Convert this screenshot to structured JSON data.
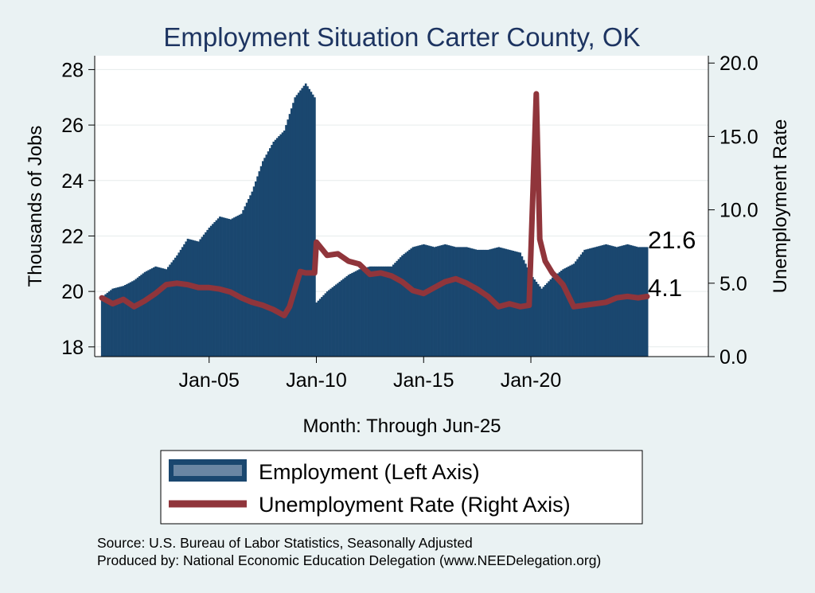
{
  "chart_data": {
    "type": "bar+line",
    "title": "Employment Situation Carter  County, OK",
    "xlabel": "Month: Through Jun-25",
    "ylabel_left": "Thousands of Jobs",
    "ylabel_right": "Unemployment Rate",
    "x_ticks": [
      "Jan-05",
      "Jan-10",
      "Jan-15",
      "Jan-20"
    ],
    "y_left_ticks": [
      "18",
      "20",
      "22",
      "24",
      "26",
      "28"
    ],
    "y_right_ticks": [
      "0.0",
      "5.0",
      "10.0",
      "15.0",
      "20.0"
    ],
    "ylim_left": [
      17.65,
      28.5
    ],
    "ylim_right": [
      0,
      20.5
    ],
    "x_range_months": [
      "2000-01",
      "2025-06"
    ],
    "end_labels": {
      "employment": "21.6",
      "unemployment": "4.1"
    },
    "legend": [
      "Employment (Left Axis)",
      "Unemployment Rate (Right Axis)"
    ],
    "legend_placement": "bottom",
    "grid": true,
    "colors": {
      "employment": "#1a476f",
      "unemployment": "#90353b",
      "background": "#eaf2f3",
      "plot": "#ffffff",
      "title": "#1d3461"
    },
    "series": [
      {
        "name": "Employment (Left Axis)",
        "kind": "bar",
        "axis": "left",
        "points": [
          [
            "2000-01",
            19.8
          ],
          [
            "2000-07",
            20.1
          ],
          [
            "2001-01",
            20.2
          ],
          [
            "2001-07",
            20.4
          ],
          [
            "2002-01",
            20.7
          ],
          [
            "2002-07",
            20.9
          ],
          [
            "2003-01",
            20.8
          ],
          [
            "2003-07",
            21.3
          ],
          [
            "2004-01",
            21.9
          ],
          [
            "2004-07",
            21.8
          ],
          [
            "2005-01",
            22.3
          ],
          [
            "2005-07",
            22.7
          ],
          [
            "2006-01",
            22.6
          ],
          [
            "2006-07",
            22.8
          ],
          [
            "2007-01",
            23.6
          ],
          [
            "2007-07",
            24.7
          ],
          [
            "2008-01",
            25.4
          ],
          [
            "2008-07",
            25.8
          ],
          [
            "2009-01",
            27.0
          ],
          [
            "2009-07",
            27.5
          ],
          [
            "2009-12",
            27.0
          ],
          [
            "2010-01",
            19.6
          ],
          [
            "2010-07",
            20.0
          ],
          [
            "2011-01",
            20.3
          ],
          [
            "2011-07",
            20.6
          ],
          [
            "2012-01",
            20.8
          ],
          [
            "2012-07",
            20.9
          ],
          [
            "2013-01",
            20.9
          ],
          [
            "2013-07",
            20.9
          ],
          [
            "2014-01",
            21.3
          ],
          [
            "2014-07",
            21.6
          ],
          [
            "2015-01",
            21.7
          ],
          [
            "2015-07",
            21.6
          ],
          [
            "2016-01",
            21.7
          ],
          [
            "2016-07",
            21.6
          ],
          [
            "2017-01",
            21.6
          ],
          [
            "2017-07",
            21.5
          ],
          [
            "2018-01",
            21.5
          ],
          [
            "2018-07",
            21.6
          ],
          [
            "2019-01",
            21.5
          ],
          [
            "2019-07",
            21.4
          ],
          [
            "2020-01",
            20.6
          ],
          [
            "2020-07",
            20.1
          ],
          [
            "2021-01",
            20.5
          ],
          [
            "2021-07",
            20.8
          ],
          [
            "2022-01",
            21.0
          ],
          [
            "2022-07",
            21.5
          ],
          [
            "2023-01",
            21.6
          ],
          [
            "2023-07",
            21.7
          ],
          [
            "2024-01",
            21.6
          ],
          [
            "2024-07",
            21.7
          ],
          [
            "2025-01",
            21.6
          ],
          [
            "2025-06",
            21.6
          ]
        ]
      },
      {
        "name": "Unemployment Rate (Right Axis)",
        "kind": "line",
        "axis": "right",
        "points": [
          [
            "2000-01",
            4.0
          ],
          [
            "2000-07",
            3.6
          ],
          [
            "2001-01",
            3.9
          ],
          [
            "2001-07",
            3.4
          ],
          [
            "2002-01",
            3.8
          ],
          [
            "2002-07",
            4.3
          ],
          [
            "2003-01",
            4.9
          ],
          [
            "2003-07",
            5.0
          ],
          [
            "2004-01",
            4.9
          ],
          [
            "2004-07",
            4.7
          ],
          [
            "2005-01",
            4.7
          ],
          [
            "2005-07",
            4.6
          ],
          [
            "2006-01",
            4.4
          ],
          [
            "2006-07",
            4.0
          ],
          [
            "2007-01",
            3.7
          ],
          [
            "2007-07",
            3.5
          ],
          [
            "2008-01",
            3.2
          ],
          [
            "2008-07",
            2.8
          ],
          [
            "2008-10",
            3.4
          ],
          [
            "2009-01",
            4.6
          ],
          [
            "2009-04",
            5.8
          ],
          [
            "2009-07",
            5.7
          ],
          [
            "2009-12",
            5.7
          ],
          [
            "2010-01",
            7.8
          ],
          [
            "2010-07",
            6.9
          ],
          [
            "2011-01",
            7.0
          ],
          [
            "2011-07",
            6.5
          ],
          [
            "2012-01",
            6.3
          ],
          [
            "2012-07",
            5.6
          ],
          [
            "2013-01",
            5.7
          ],
          [
            "2013-07",
            5.5
          ],
          [
            "2014-01",
            5.1
          ],
          [
            "2014-07",
            4.5
          ],
          [
            "2015-01",
            4.3
          ],
          [
            "2015-07",
            4.7
          ],
          [
            "2016-01",
            5.1
          ],
          [
            "2016-07",
            5.3
          ],
          [
            "2017-01",
            5.0
          ],
          [
            "2017-07",
            4.6
          ],
          [
            "2018-01",
            4.1
          ],
          [
            "2018-07",
            3.4
          ],
          [
            "2019-01",
            3.6
          ],
          [
            "2019-07",
            3.4
          ],
          [
            "2019-12",
            3.5
          ],
          [
            "2020-04",
            17.9
          ],
          [
            "2020-06",
            8.0
          ],
          [
            "2020-09",
            6.5
          ],
          [
            "2021-01",
            5.7
          ],
          [
            "2021-07",
            4.9
          ],
          [
            "2022-01",
            3.4
          ],
          [
            "2022-07",
            3.5
          ],
          [
            "2023-01",
            3.6
          ],
          [
            "2023-07",
            3.7
          ],
          [
            "2024-01",
            4.0
          ],
          [
            "2024-07",
            4.1
          ],
          [
            "2025-01",
            4.0
          ],
          [
            "2025-06",
            4.1
          ]
        ]
      }
    ]
  },
  "source_line": "Source: U.S. Bureau of Labor Statistics, Seasonally Adjusted",
  "producer_line": "Produced by: National Economic Education Delegation (www.NEEDelegation.org)"
}
